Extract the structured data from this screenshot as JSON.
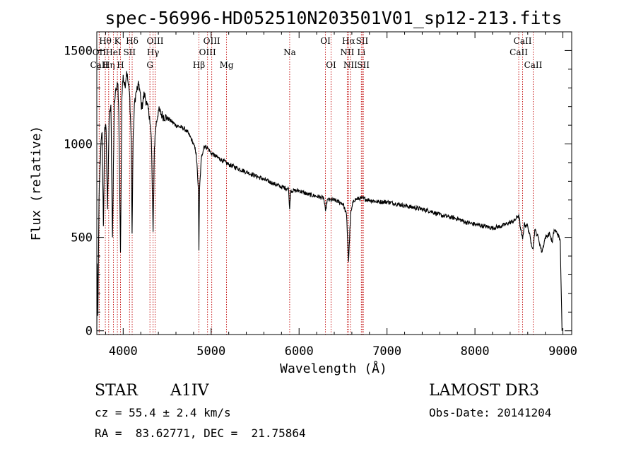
{
  "chart_data": {
    "type": "line",
    "title": "spec-56996-HD052510N203501V01_sp12-213.fits",
    "xlabel": "Wavelength (Å)",
    "ylabel": "Flux (relative)",
    "xlim": [
      3700,
      9100
    ],
    "ylim": [
      -20,
      1600
    ],
    "xticks": [
      4000,
      5000,
      6000,
      7000,
      8000,
      9000
    ],
    "yticks": [
      0,
      500,
      1000,
      1500
    ],
    "spectrum_knots": [
      [
        3700,
        0
      ],
      [
        3705,
        360
      ],
      [
        3712,
        80
      ],
      [
        3725,
        700
      ],
      [
        3745,
        980
      ],
      [
        3760,
        1060
      ],
      [
        3775,
        560
      ],
      [
        3790,
        1090
      ],
      [
        3805,
        1080
      ],
      [
        3822,
        650
      ],
      [
        3840,
        1130
      ],
      [
        3860,
        1210
      ],
      [
        3878,
        500
      ],
      [
        3900,
        1230
      ],
      [
        3920,
        1290
      ],
      [
        3940,
        1320
      ],
      [
        3950,
        1160
      ],
      [
        3969,
        420
      ],
      [
        3985,
        1250
      ],
      [
        4000,
        1370
      ],
      [
        4020,
        1310
      ],
      [
        4040,
        1390
      ],
      [
        4055,
        1330
      ],
      [
        4075,
        1250
      ],
      [
        4090,
        1040
      ],
      [
        4101,
        520
      ],
      [
        4112,
        1010
      ],
      [
        4130,
        1230
      ],
      [
        4150,
        1280
      ],
      [
        4180,
        1320
      ],
      [
        4210,
        1190
      ],
      [
        4240,
        1270
      ],
      [
        4270,
        1210
      ],
      [
        4300,
        1150
      ],
      [
        4320,
        1020
      ],
      [
        4340,
        530
      ],
      [
        4355,
        980
      ],
      [
        4370,
        1090
      ],
      [
        4400,
        1180
      ],
      [
        4450,
        1150
      ],
      [
        4500,
        1140
      ],
      [
        4550,
        1120
      ],
      [
        4600,
        1100
      ],
      [
        4650,
        1090
      ],
      [
        4700,
        1080
      ],
      [
        4750,
        1050
      ],
      [
        4800,
        1000
      ],
      [
        4830,
        950
      ],
      [
        4855,
        760
      ],
      [
        4861,
        430
      ],
      [
        4868,
        760
      ],
      [
        4890,
        930
      ],
      [
        4920,
        990
      ],
      [
        4960,
        980
      ],
      [
        5000,
        950
      ],
      [
        5100,
        920
      ],
      [
        5200,
        890
      ],
      [
        5300,
        870
      ],
      [
        5400,
        850
      ],
      [
        5500,
        830
      ],
      [
        5600,
        810
      ],
      [
        5700,
        790
      ],
      [
        5800,
        770
      ],
      [
        5880,
        760
      ],
      [
        5893,
        650
      ],
      [
        5905,
        750
      ],
      [
        6000,
        750
      ],
      [
        6100,
        730
      ],
      [
        6200,
        720
      ],
      [
        6280,
        710
      ],
      [
        6300,
        640
      ],
      [
        6320,
        700
      ],
      [
        6400,
        700
      ],
      [
        6500,
        680
      ],
      [
        6540,
        620
      ],
      [
        6563,
        370
      ],
      [
        6585,
        620
      ],
      [
        6620,
        700
      ],
      [
        6700,
        710
      ],
      [
        6800,
        700
      ],
      [
        6900,
        690
      ],
      [
        7000,
        690
      ],
      [
        7100,
        680
      ],
      [
        7200,
        670
      ],
      [
        7300,
        660
      ],
      [
        7400,
        650
      ],
      [
        7500,
        640
      ],
      [
        7600,
        620
      ],
      [
        7700,
        610
      ],
      [
        7800,
        600
      ],
      [
        7900,
        580
      ],
      [
        8000,
        570
      ],
      [
        8100,
        560
      ],
      [
        8200,
        550
      ],
      [
        8300,
        560
      ],
      [
        8400,
        580
      ],
      [
        8450,
        590
      ],
      [
        8498,
        620
      ],
      [
        8520,
        540
      ],
      [
        8542,
        490
      ],
      [
        8560,
        570
      ],
      [
        8600,
        560
      ],
      [
        8640,
        470
      ],
      [
        8662,
        440
      ],
      [
        8680,
        540
      ],
      [
        8720,
        500
      ],
      [
        8760,
        420
      ],
      [
        8800,
        500
      ],
      [
        8850,
        520
      ],
      [
        8880,
        470
      ],
      [
        8900,
        540
      ],
      [
        8940,
        520
      ],
      [
        8970,
        480
      ],
      [
        8990,
        0
      ]
    ],
    "spectral_lines": [
      {
        "label": "Hθ",
        "wl": 3797,
        "row": 1
      },
      {
        "label": "OII",
        "wl": 3727,
        "row": 2
      },
      {
        "label": "CaII",
        "wl": 3727,
        "row": 3
      },
      {
        "label": "Hη",
        "wl": 3835,
        "row": 3
      },
      {
        "label": "HeI",
        "wl": 3889,
        "row": 2
      },
      {
        "label": "K",
        "wl": 3934,
        "row": 1
      },
      {
        "label": "H",
        "wl": 3969,
        "row": 3
      },
      {
        "label": "SII",
        "wl": 4072,
        "row": 2
      },
      {
        "label": "Hδ",
        "wl": 4102,
        "row": 1
      },
      {
        "label": "OIII",
        "wl": 4363,
        "row": 1
      },
      {
        "label": "Hγ",
        "wl": 4340,
        "row": 2
      },
      {
        "label": "G",
        "wl": 4304,
        "row": 3
      },
      {
        "label": "Hβ",
        "wl": 4861,
        "row": 3
      },
      {
        "label": "OIII",
        "wl": 5007,
        "row": 1
      },
      {
        "label": "OIII",
        "wl": 4959,
        "row": 2
      },
      {
        "label": "Mg",
        "wl": 5175,
        "row": 3
      },
      {
        "label": "Na",
        "wl": 5893,
        "row": 2
      },
      {
        "label": "OI",
        "wl": 6300,
        "row": 1
      },
      {
        "label": "OI",
        "wl": 6364,
        "row": 3
      },
      {
        "label": "Hα",
        "wl": 6563,
        "row": 1
      },
      {
        "label": "NII",
        "wl": 6548,
        "row": 2
      },
      {
        "label": "NII",
        "wl": 6584,
        "row": 3
      },
      {
        "label": "SII",
        "wl": 6717,
        "row": 1
      },
      {
        "label": "Li",
        "wl": 6708,
        "row": 2
      },
      {
        "label": "SII",
        "wl": 6731,
        "row": 3
      },
      {
        "label": "CaII",
        "wl": 8542,
        "row": 1
      },
      {
        "label": "CaII",
        "wl": 8498,
        "row": 2
      },
      {
        "label": "CaII",
        "wl": 8662,
        "row": 3
      }
    ]
  },
  "info": {
    "object_type": "STAR",
    "subclass": "A1IV",
    "survey": "LAMOST DR3",
    "cz": "cz = 55.4 ± 2.4 km/s",
    "obs_date": "Obs-Date: 20141204",
    "coords": "RA =  83.62771, DEC =  21.75864"
  }
}
